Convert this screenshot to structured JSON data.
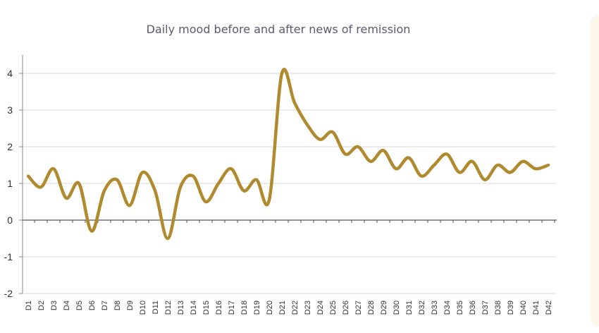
{
  "chart_data": {
    "type": "line",
    "title": "Daily mood before and after news of remission",
    "xlabel": "",
    "ylabel": "",
    "ylim": [
      -2,
      4
    ],
    "yticks": [
      4,
      3,
      2,
      1,
      0,
      -1,
      -2
    ],
    "grid": true,
    "line_color": "#b08a2e",
    "categories": [
      "D1",
      "D2",
      "D3",
      "D4",
      "D5",
      "D6",
      "D7",
      "D8",
      "D9",
      "D10",
      "D11",
      "D12",
      "D13",
      "D14",
      "D15",
      "D16",
      "D17",
      "D18",
      "D19",
      "D20",
      "D21",
      "D22",
      "D23",
      "D24",
      "D25",
      "D26",
      "D27",
      "D28",
      "D29",
      "D30",
      "D31",
      "D32",
      "D33",
      "D34",
      "D35",
      "D36",
      "D37",
      "D38",
      "D39",
      "D40",
      "D41",
      "D42"
    ],
    "series": [
      {
        "values": [
          1.2,
          0.9,
          1.4,
          0.6,
          1.0,
          -0.3,
          0.8,
          1.1,
          0.4,
          1.3,
          0.8,
          -0.5,
          0.9,
          1.2,
          0.5,
          1.0,
          1.4,
          0.8,
          1.1,
          0.55,
          4.0,
          3.2,
          2.6,
          2.2,
          2.4,
          1.8,
          2.0,
          1.6,
          1.9,
          1.4,
          1.7,
          1.2,
          1.5,
          1.8,
          1.3,
          1.6,
          1.1,
          1.5,
          1.3,
          1.6,
          1.4,
          1.5
        ]
      }
    ]
  }
}
